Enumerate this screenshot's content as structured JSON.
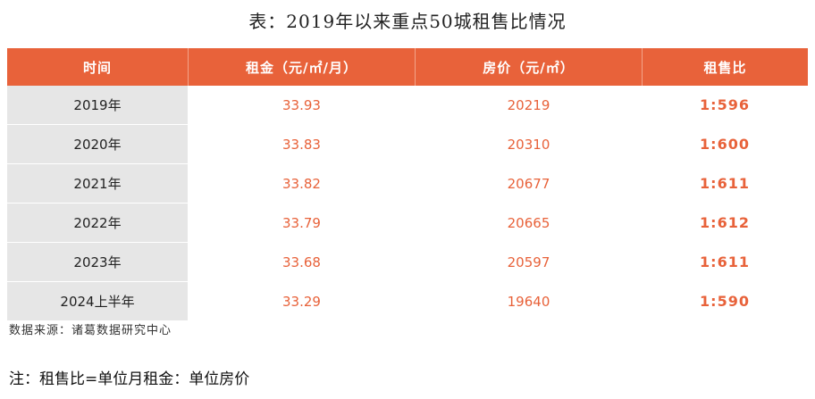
{
  "title": "表：2019年以来重点50城租售比情况",
  "table": {
    "headers": [
      "时间",
      "租金（元/㎡/月）",
      "房价（元/㎡）",
      "租售比"
    ],
    "rows": [
      {
        "year": "2019年",
        "rent": "33.93",
        "price": "20219",
        "ratio": "1:596"
      },
      {
        "year": "2020年",
        "rent": "33.83",
        "price": "20310",
        "ratio": "1:600"
      },
      {
        "year": "2021年",
        "rent": "33.82",
        "price": "20677",
        "ratio": "1:611"
      },
      {
        "year": "2022年",
        "rent": "33.79",
        "price": "20665",
        "ratio": "1:612"
      },
      {
        "year": "2023年",
        "rent": "33.68",
        "price": "20597",
        "ratio": "1:611"
      },
      {
        "year": "2024上半年",
        "rent": "33.29",
        "price": "19640",
        "ratio": "1:590"
      }
    ]
  },
  "source": "数据来源：诸葛数据研究中心",
  "note": "注：租售比=单位月租金：单位房价",
  "colors": {
    "header_bg": "#e8623a",
    "value_text": "#e8623a",
    "year_bg": "#e6e6e6"
  }
}
